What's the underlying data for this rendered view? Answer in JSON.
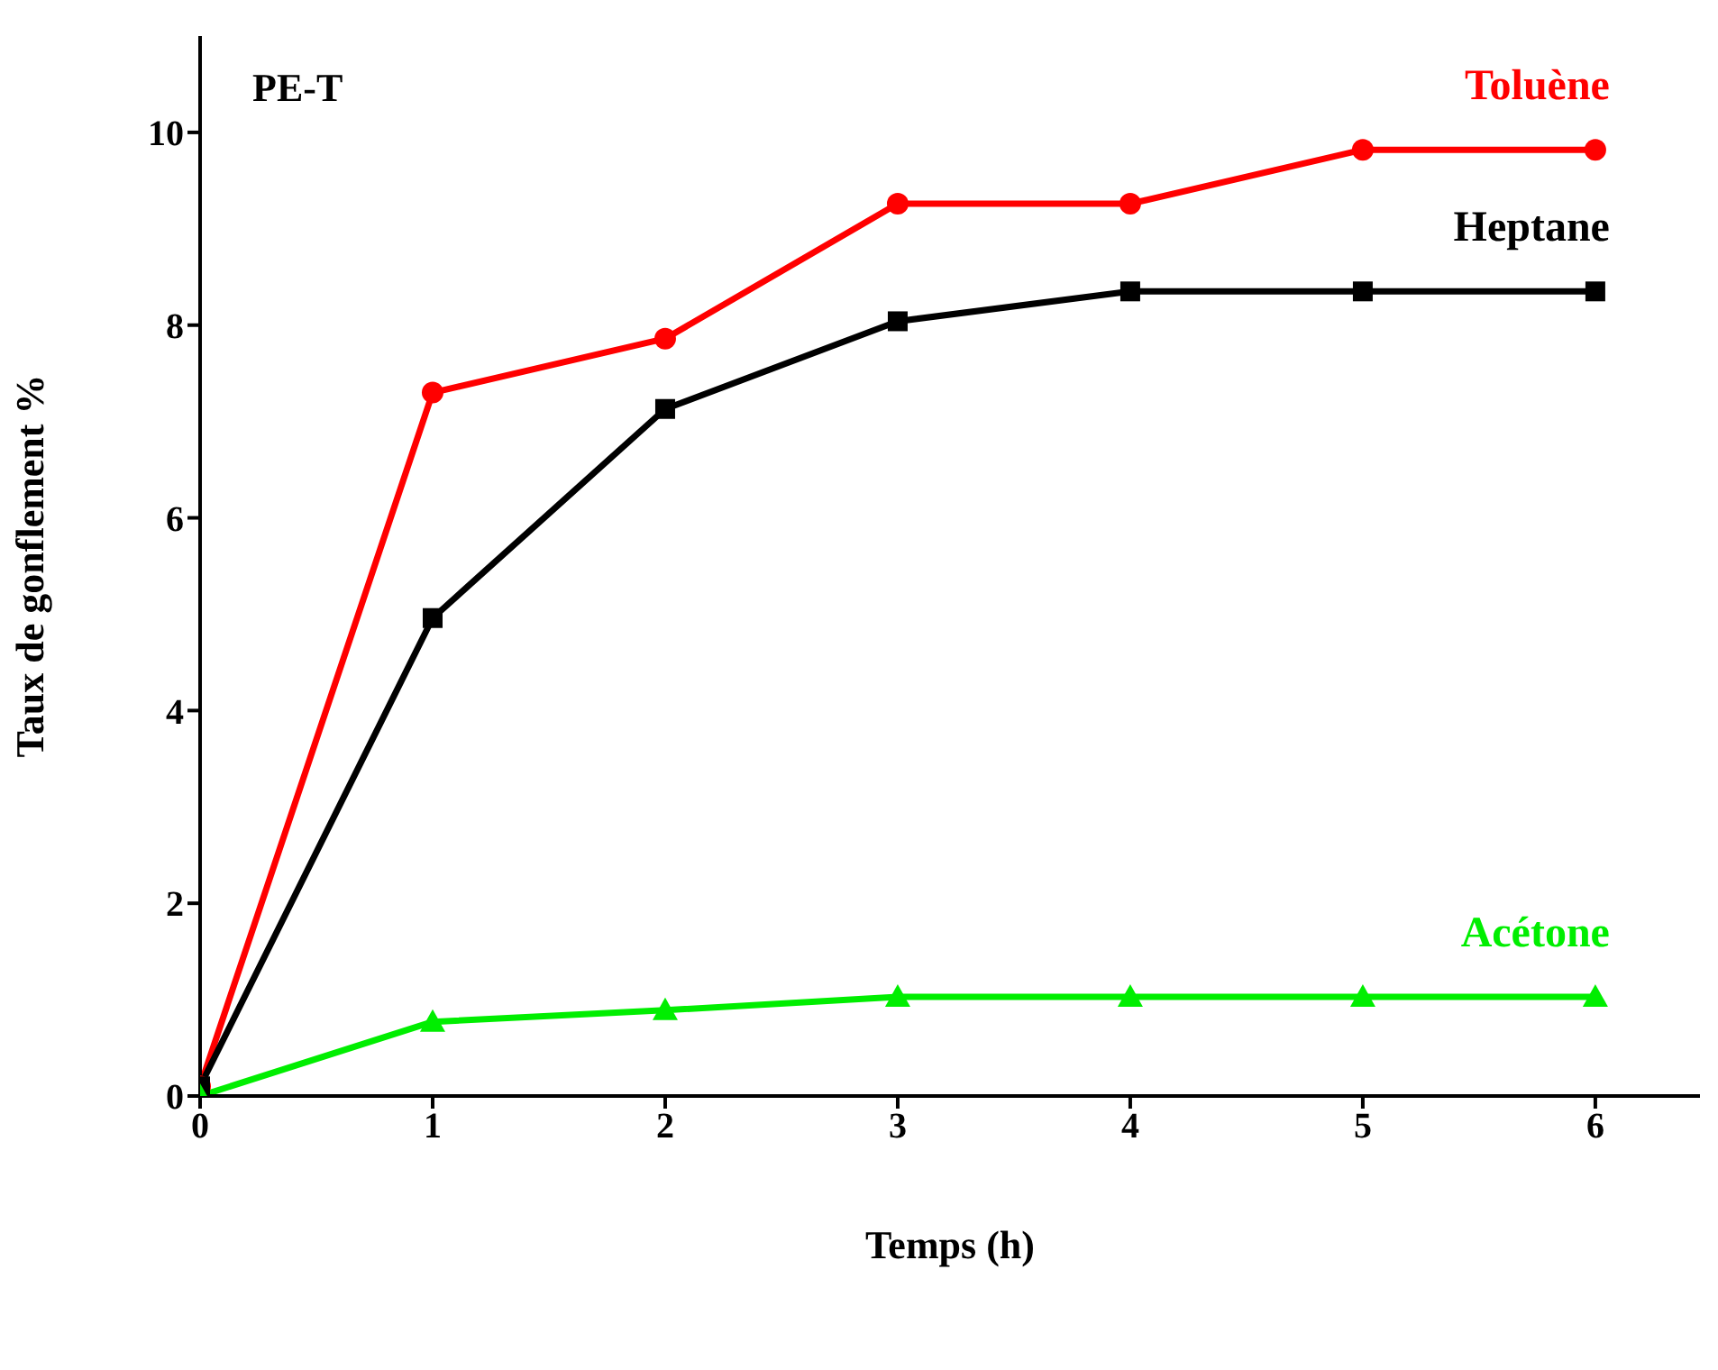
{
  "chart_data": {
    "type": "line",
    "title": "PE-T",
    "xlabel": "Temps (h)",
    "ylabel": "Taux de gonflement %",
    "x": [
      0,
      1,
      2,
      3,
      4,
      5,
      6
    ],
    "xlim": [
      0,
      6.45
    ],
    "xticks": [
      0,
      1,
      2,
      3,
      4,
      5,
      6
    ],
    "ylim": [
      0,
      11
    ],
    "yticks": [
      0,
      2,
      4,
      6,
      8,
      10
    ],
    "grid": false,
    "legend": false,
    "line_style": "solid",
    "series": [
      {
        "name": "Toluène",
        "color": "#ff0000",
        "marker": "circle",
        "values": [
          0.1,
          7.3,
          7.86,
          9.26,
          9.26,
          9.82,
          9.82
        ]
      },
      {
        "name": "Heptane",
        "color": "#000000",
        "marker": "square",
        "values": [
          0.1,
          4.96,
          7.13,
          8.04,
          8.35,
          8.35,
          8.35
        ]
      },
      {
        "name": "Acétone",
        "color": "#00ee00",
        "marker": "triangle",
        "values": [
          0,
          0.77,
          0.89,
          1.03,
          1.03,
          1.03,
          1.03
        ]
      }
    ]
  }
}
